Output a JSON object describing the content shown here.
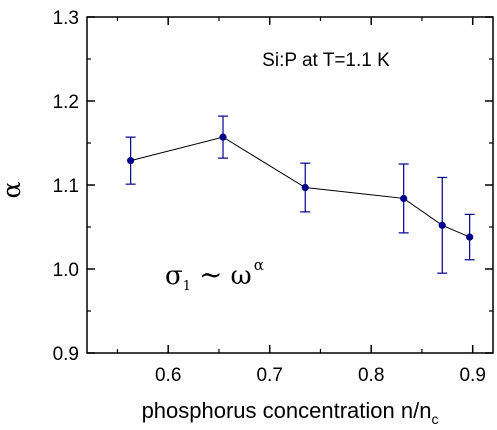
{
  "chart_data": {
    "type": "scatter",
    "title": "",
    "xlabel": "phosphorus concentration n/n",
    "xlabel_subscript": "c",
    "ylabel": "α",
    "xlim": [
      0.52,
      0.92
    ],
    "ylim": [
      0.9,
      1.3
    ],
    "x_ticks": [
      "0.6",
      "0.7",
      "0.8",
      "0.9"
    ],
    "y_ticks": [
      "0.9",
      "1.0",
      "1.1",
      "1.2",
      "1.3"
    ],
    "grid": false,
    "series_color": "#00008b",
    "points": [
      {
        "x": 0.563,
        "y": 1.129,
        "err": 0.028
      },
      {
        "x": 0.654,
        "y": 1.157,
        "err": 0.025
      },
      {
        "x": 0.735,
        "y": 1.097,
        "err": 0.029
      },
      {
        "x": 0.832,
        "y": 1.084,
        "err": 0.041
      },
      {
        "x": 0.87,
        "y": 1.052,
        "err": 0.057
      },
      {
        "x": 0.897,
        "y": 1.038,
        "err": 0.027
      }
    ],
    "annotations": {
      "sample": "Si:P at T=1.1 K",
      "formula": {
        "base": "σ",
        "sub": "1",
        "op": "~",
        "rhs": "ω",
        "sup": "α"
      }
    }
  }
}
